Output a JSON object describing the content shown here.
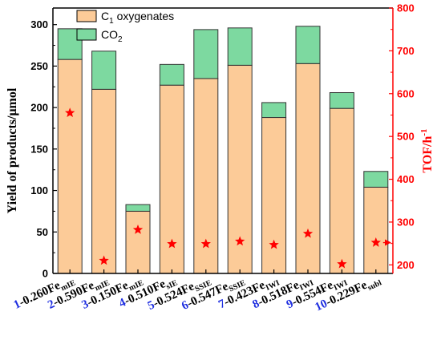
{
  "chart_data": {
    "type": "bar",
    "stacked": true,
    "categories": [
      {
        "num": "1",
        "label": "-0.260Fe",
        "sub": "mIE"
      },
      {
        "num": "2",
        "label": "-0.590Fe",
        "sub": "mIE"
      },
      {
        "num": "3",
        "label": "-0.150Fe",
        "sub": "mIE"
      },
      {
        "num": "4",
        "label": "-0.510Fe",
        "sub": "sIE"
      },
      {
        "num": "5",
        "label": "-0.524Fe",
        "sub": "SSIE"
      },
      {
        "num": "6",
        "label": "-0.547Fe",
        "sub": "SSIE"
      },
      {
        "num": "7",
        "label": "-0.423Fe",
        "sub": "IWI"
      },
      {
        "num": "8",
        "label": "-0.518Fe",
        "sub": "IWI"
      },
      {
        "num": "9",
        "label": "-0.554Fe",
        "sub": "IWI"
      },
      {
        "num": "10",
        "label": "-0.229Fe",
        "sub": "subl"
      }
    ],
    "series": [
      {
        "name": "C1 oxygenates",
        "name_main": "C",
        "name_sub": "1",
        "name_rest": " oxygenates",
        "color": "#fccb98",
        "values": [
          258,
          222,
          75,
          227,
          235,
          251,
          188,
          253,
          199,
          104
        ]
      },
      {
        "name": "CO2",
        "name_main": "CO",
        "name_sub": "2",
        "name_rest": "",
        "color": "#7dd9a0",
        "values": [
          37,
          46,
          8,
          25,
          59,
          45,
          18,
          45,
          19,
          19
        ]
      }
    ],
    "tof": {
      "color": "#ff0000",
      "values": [
        555,
        210,
        282,
        249,
        249,
        255,
        247,
        273,
        202,
        252
      ]
    },
    "ylabel": "Yield of products/μmol",
    "y2label": "TOF/h",
    "y2label_sup": "-1",
    "ylim": [
      0,
      320
    ],
    "y2lim": [
      180,
      800
    ],
    "yticks": [
      0,
      50,
      100,
      150,
      200,
      250,
      300
    ],
    "y2ticks": [
      200,
      300,
      400,
      500,
      600,
      700,
      800
    ],
    "category_number_color": "#1f2fe0"
  }
}
